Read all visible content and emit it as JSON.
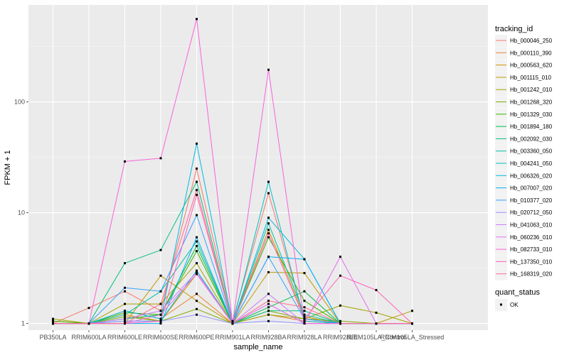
{
  "chart_data": {
    "type": "line",
    "xlabel": "sample_name",
    "ylabel": "FPKM + 1",
    "y_scale": "log10",
    "ylim": [
      0.87,
      750
    ],
    "y_ticks": [
      1,
      10,
      100
    ],
    "y_tick_labels": [
      "1",
      "10",
      "100"
    ],
    "grid": true,
    "legend_position": "right",
    "categories": [
      "PB350LA",
      "RRIM600LA",
      "RRIM600LE",
      "RRIM600SE",
      "RRIM600PE",
      "RRIM901LA",
      "RRIM928BA",
      "RRIM928LA",
      "RRIM928LE",
      "RRIM105LA_Control",
      "RRIM105LA_Stressed"
    ],
    "color_legend_title": "tracking_id",
    "shape_legend_title": "quant_status",
    "shape_legend_items": [
      "OK"
    ],
    "series": [
      {
        "name": "Hb_000046_250",
        "color": "#F8766D",
        "values": [
          1.0,
          1.38,
          1.95,
          1.3,
          25.0,
          1.05,
          15.0,
          1.1,
          1.0,
          1.0,
          1.0
        ]
      },
      {
        "name": "Hb_000110_390",
        "color": "#EA8331",
        "values": [
          1.0,
          1.0,
          1.3,
          1.1,
          1.85,
          1.0,
          1.2,
          1.05,
          1.0,
          1.0,
          1.0
        ]
      },
      {
        "name": "Hb_000563_620",
        "color": "#D89000",
        "values": [
          1.05,
          1.0,
          1.2,
          1.05,
          2.8,
          1.0,
          7.0,
          1.15,
          1.0,
          1.0,
          1.0
        ]
      },
      {
        "name": "Hb_001115_010",
        "color": "#C09B00",
        "values": [
          1.0,
          1.0,
          1.0,
          2.7,
          1.6,
          1.0,
          2.9,
          2.85,
          1.0,
          1.0,
          1.3
        ]
      },
      {
        "name": "Hb_001242_010",
        "color": "#A3A500",
        "values": [
          1.1,
          1.0,
          1.5,
          1.5,
          3.5,
          1.0,
          1.2,
          1.1,
          1.45,
          1.25,
          1.0
        ]
      },
      {
        "name": "Hb_001268_320",
        "color": "#7CAE00",
        "values": [
          1.0,
          1.0,
          1.15,
          1.05,
          1.35,
          1.0,
          1.3,
          1.1,
          1.05,
          1.0,
          1.0
        ]
      },
      {
        "name": "Hb_001329_030",
        "color": "#39B600",
        "values": [
          1.05,
          1.0,
          1.25,
          1.2,
          4.5,
          1.0,
          6.0,
          1.6,
          1.0,
          1.0,
          1.0
        ]
      },
      {
        "name": "Hb_001894_180",
        "color": "#00BB4E",
        "values": [
          1.0,
          1.0,
          1.1,
          1.2,
          5.0,
          1.0,
          1.4,
          1.95,
          1.0,
          1.0,
          1.0
        ]
      },
      {
        "name": "Hb_002092_030",
        "color": "#00BF7D",
        "values": [
          1.0,
          1.0,
          3.5,
          4.6,
          19.0,
          1.0,
          1.3,
          1.3,
          1.0,
          1.0,
          1.0
        ]
      },
      {
        "name": "Hb_003360_050",
        "color": "#00C1A3",
        "values": [
          1.0,
          1.0,
          1.2,
          1.95,
          5.5,
          1.0,
          8.0,
          1.2,
          1.0,
          1.0,
          1.0
        ]
      },
      {
        "name": "Hb_004241_050",
        "color": "#00BFC4",
        "values": [
          1.0,
          1.0,
          1.05,
          1.05,
          3.0,
          1.0,
          19.0,
          1.05,
          1.0,
          1.0,
          1.0
        ]
      },
      {
        "name": "Hb_006326_020",
        "color": "#00BAE0",
        "values": [
          1.0,
          1.0,
          1.3,
          1.1,
          42.0,
          1.0,
          9.0,
          3.8,
          1.0,
          1.0,
          1.0
        ]
      },
      {
        "name": "Hb_007007_020",
        "color": "#00B0F6",
        "values": [
          1.0,
          1.0,
          1.0,
          1.0,
          6.0,
          1.0,
          4.0,
          3.8,
          1.0,
          1.0,
          1.0
        ]
      },
      {
        "name": "Hb_010377_020",
        "color": "#35A2FF",
        "values": [
          1.0,
          1.0,
          2.1,
          1.95,
          9.5,
          1.0,
          4.0,
          1.1,
          1.0,
          1.0,
          1.0
        ]
      },
      {
        "name": "Hb_020712_050",
        "color": "#9590FF",
        "values": [
          1.0,
          1.0,
          1.05,
          1.05,
          1.2,
          1.0,
          1.05,
          1.0,
          1.0,
          1.0,
          1.0
        ]
      },
      {
        "name": "Hb_041063_010",
        "color": "#C77CFF",
        "values": [
          1.0,
          1.0,
          1.1,
          1.3,
          2.9,
          1.0,
          1.85,
          1.0,
          1.0,
          1.0,
          1.0
        ]
      },
      {
        "name": "Hb_060236_010",
        "color": "#E76BF3",
        "values": [
          1.0,
          1.0,
          1.0,
          1.2,
          2.8,
          1.0,
          1.5,
          1.0,
          4.0,
          1.0,
          1.0
        ]
      },
      {
        "name": "Hb_082733_010",
        "color": "#FA62DB",
        "values": [
          1.0,
          1.0,
          29.0,
          31.0,
          560.0,
          1.0,
          195.0,
          1.0,
          1.0,
          1.0,
          1.0
        ]
      },
      {
        "name": "Hb_137350_010",
        "color": "#FF62BC",
        "values": [
          1.0,
          1.0,
          1.0,
          1.05,
          14.5,
          1.0,
          6.5,
          1.1,
          2.7,
          2.0,
          1.0
        ]
      },
      {
        "name": "Hb_168319_020",
        "color": "#FF6C91",
        "values": [
          1.0,
          1.0,
          1.0,
          1.5,
          16.0,
          1.0,
          1.6,
          1.4,
          1.0,
          1.0,
          1.0
        ]
      }
    ]
  }
}
